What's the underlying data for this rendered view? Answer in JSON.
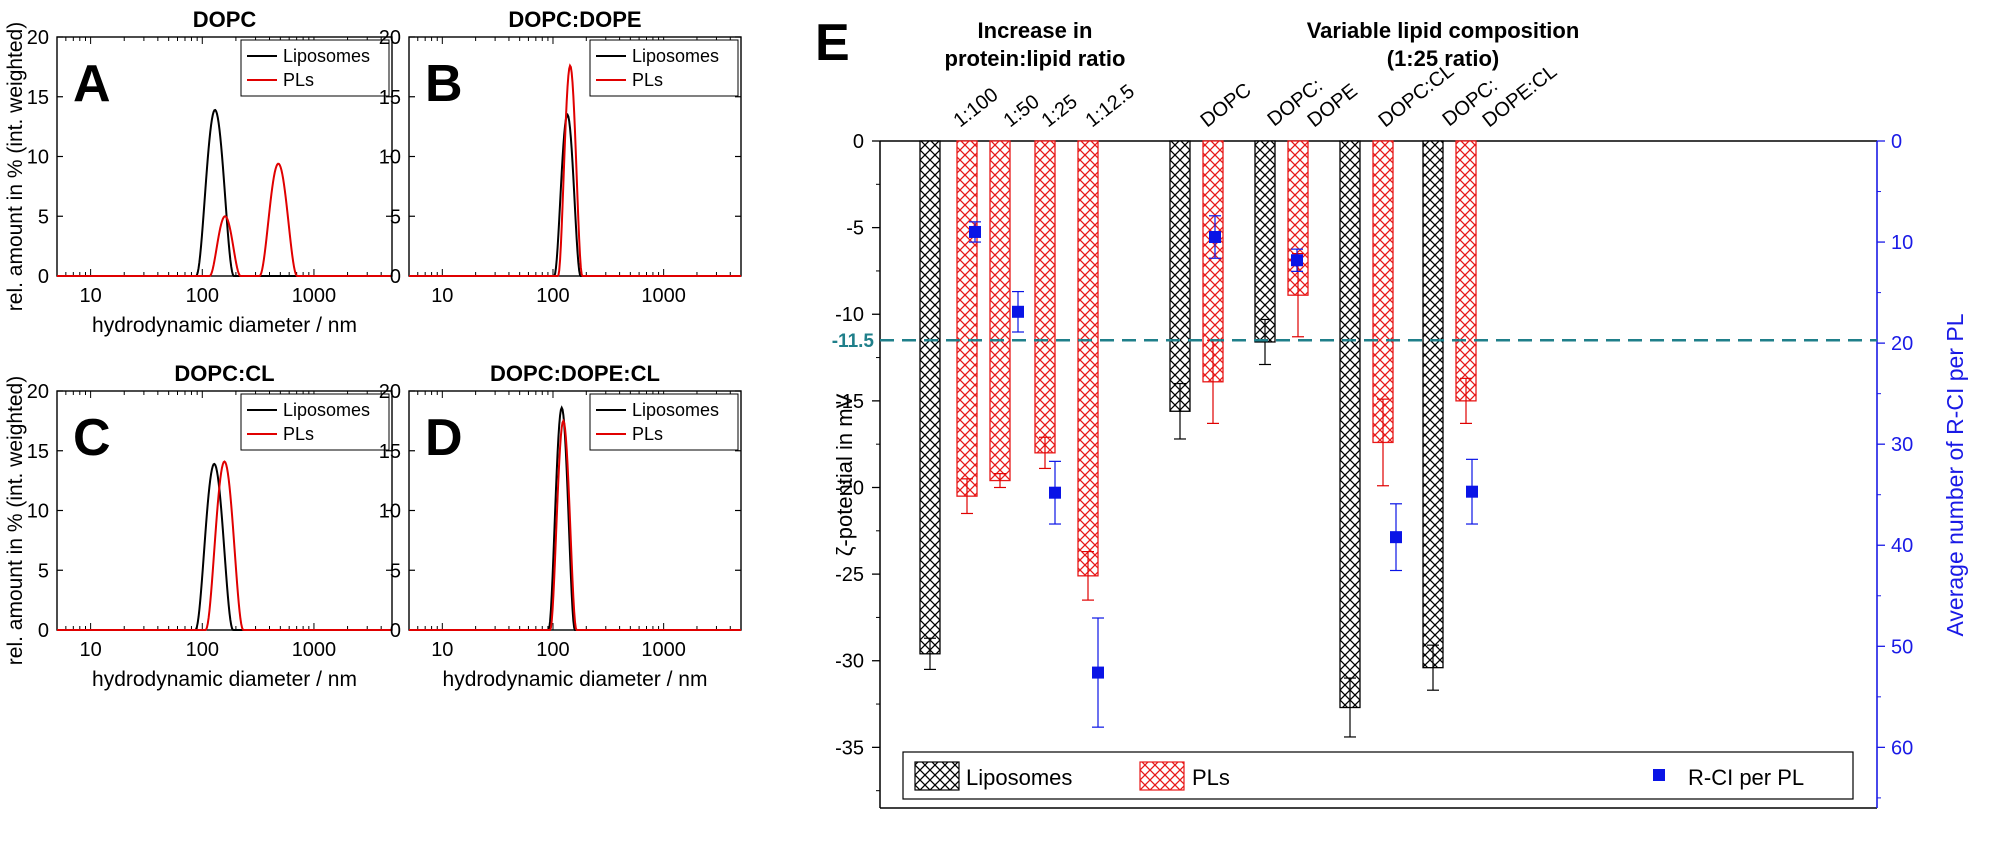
{
  "colors": {
    "liposomes": "#000000",
    "pls": "#e00000",
    "rci": "#0a14e6",
    "right_axis": "#1a1ae6",
    "dashed": "#1f7f8a",
    "hatch_black": "#000000",
    "hatch_red": "#e81818"
  },
  "chart_data": [
    {
      "type": "line",
      "panel_letter": "A",
      "title": "DOPC",
      "xlabel": "hydrodynamic diameter / nm",
      "ylabel": "rel. amount in % (int. weighted)",
      "xscale": "log",
      "xlim": [
        5,
        5000
      ],
      "ylim": [
        0,
        20
      ],
      "x_ticks": [
        10,
        100,
        1000
      ],
      "y_ticks": [
        0,
        5,
        10,
        15,
        20
      ],
      "legend_position": "top-right",
      "series": [
        {
          "name": "Liposomes",
          "peaks": [
            {
              "center": 130,
              "height": 13.9,
              "halfwidth_log10": 0.17
            }
          ]
        },
        {
          "name": "PLs",
          "peaks": [
            {
              "center": 160,
              "height": 5.0,
              "halfwidth_log10": 0.14
            },
            {
              "center": 480,
              "height": 9.4,
              "halfwidth_log10": 0.17
            }
          ]
        }
      ]
    },
    {
      "type": "line",
      "panel_letter": "B",
      "title": "DOPC:DOPE",
      "xlabel": "",
      "ylabel": "",
      "xscale": "log",
      "xlim": [
        5,
        5000
      ],
      "ylim": [
        0,
        20
      ],
      "x_ticks": [
        10,
        100,
        1000
      ],
      "y_ticks": [
        0,
        5,
        10,
        15,
        20
      ],
      "legend_position": "top-right",
      "series": [
        {
          "name": "Liposomes",
          "peaks": [
            {
              "center": 135,
              "height": 13.5,
              "halfwidth_log10": 0.12
            }
          ]
        },
        {
          "name": "PLs",
          "peaks": [
            {
              "center": 143,
              "height": 17.6,
              "halfwidth_log10": 0.11
            }
          ]
        }
      ]
    },
    {
      "type": "line",
      "panel_letter": "C",
      "title": "DOPC:CL",
      "xlabel": "hydrodynamic diameter / nm",
      "ylabel": "rel. amount in % (int. weighted)",
      "xscale": "log",
      "xlim": [
        5,
        5000
      ],
      "ylim": [
        0,
        20
      ],
      "x_ticks": [
        10,
        100,
        1000
      ],
      "y_ticks": [
        0,
        5,
        10,
        15,
        20
      ],
      "legend_position": "top-right",
      "series": [
        {
          "name": "Liposomes",
          "peaks": [
            {
              "center": 128,
              "height": 13.9,
              "halfwidth_log10": 0.17
            }
          ]
        },
        {
          "name": "PLs",
          "peaks": [
            {
              "center": 158,
              "height": 14.1,
              "halfwidth_log10": 0.17
            }
          ]
        }
      ]
    },
    {
      "type": "line",
      "panel_letter": "D",
      "title": "DOPC:DOPE:CL",
      "xlabel": "hydrodynamic diameter / nm",
      "ylabel": "",
      "xscale": "log",
      "xlim": [
        5,
        5000
      ],
      "ylim": [
        0,
        20
      ],
      "x_ticks": [
        10,
        100,
        1000
      ],
      "y_ticks": [
        0,
        5,
        10,
        15,
        20
      ],
      "legend_position": "top-right",
      "series": [
        {
          "name": "Liposomes",
          "peaks": [
            {
              "center": 120,
              "height": 18.6,
              "halfwidth_log10": 0.12
            }
          ]
        },
        {
          "name": "PLs",
          "peaks": [
            {
              "center": 124,
              "height": 17.5,
              "halfwidth_log10": 0.12
            }
          ]
        }
      ]
    },
    {
      "type": "bar",
      "panel_letter": "E",
      "ylabel": "ζ-potential in mV",
      "y2label": "Average number of R-CI per PL",
      "ylim": [
        -38.5,
        0
      ],
      "y_ticks": [
        0,
        -5,
        -10,
        -15,
        -20,
        -25,
        -30,
        -35
      ],
      "y2lim": [
        0,
        66
      ],
      "y2_ticks": [
        0,
        10,
        20,
        30,
        40,
        50,
        60
      ],
      "group_headers": [
        {
          "line1": "Increase in",
          "line2": "protein:lipid ratio"
        },
        {
          "line1": "Variable lipid composition",
          "line2": "(1:25 ratio)"
        }
      ],
      "categories": [
        {
          "label_lines": [
            "1:100"
          ]
        },
        {
          "label_lines": [
            "1:50"
          ]
        },
        {
          "label_lines": [
            "1:25"
          ]
        },
        {
          "label_lines": [
            "1:12.5"
          ]
        },
        {
          "label_lines": [
            "DOPC"
          ]
        },
        {
          "label_lines": [
            "DOPC:",
            "DOPE"
          ]
        },
        {
          "label_lines": [
            "DOPC:CL"
          ]
        },
        {
          "label_lines": [
            "DOPC:",
            "DOPE:CL"
          ]
        }
      ],
      "reference_line": {
        "value": -11.5,
        "label": "-11.5",
        "style": "dashed"
      },
      "legend_position": "bottom",
      "series": [
        {
          "name": "Liposomes",
          "values": [
            -29.6,
            null,
            null,
            null,
            -15.6,
            -11.6,
            -32.7,
            -30.4
          ],
          "errors": [
            0.9,
            null,
            null,
            null,
            1.6,
            1.3,
            1.7,
            1.3
          ]
        },
        {
          "name": "PLs",
          "values": [
            -20.5,
            -19.6,
            -18.0,
            -25.1,
            -13.9,
            -8.9,
            -17.4,
            -15.0
          ],
          "errors": [
            1.0,
            0.4,
            0.9,
            1.4,
            2.4,
            2.4,
            2.5,
            1.3
          ]
        },
        {
          "name": "R-CI per PL",
          "axis": "right",
          "values": [
            9.0,
            16.9,
            34.8,
            52.6,
            9.5,
            11.8,
            39.2,
            34.7
          ],
          "errors": [
            1.0,
            2.0,
            3.1,
            5.4,
            2.1,
            1.1,
            3.3,
            3.2
          ]
        }
      ]
    }
  ]
}
